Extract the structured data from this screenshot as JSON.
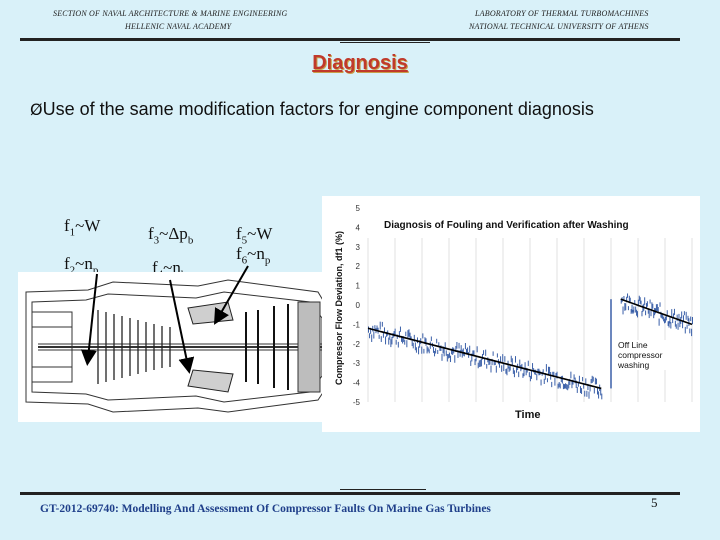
{
  "header": {
    "left_line1": "SECTION OF NAVAL ARCHITECTURE & MARINE ENGINEERING",
    "left_line2": "HELLENIC NAVAL ACADEMY",
    "right_line1": "LABORATORY OF THERMAL TURBOMACHINES",
    "right_line2": "NATIONAL TECHNICAL UNIVERSITY OF ATHENS"
  },
  "slide": {
    "title": "Diagnosis",
    "bullet_arrow": "Ø",
    "bullet_text": "Use of the same modification factors for engine component diagnosis"
  },
  "factors": [
    {
      "f": "f",
      "sub": "1",
      "rel": "~W"
    },
    {
      "f": "f",
      "sub": "2",
      "rel": "~n",
      "rsub": "p"
    },
    {
      "f": "f",
      "sub": "3",
      "rel": "~Δp",
      "rsub": "b"
    },
    {
      "f": "f",
      "sub": "4",
      "rel": "~n",
      "rsub": "b"
    },
    {
      "f": "f",
      "sub": "5",
      "rel": "~W"
    },
    {
      "f": "f",
      "sub": "6",
      "rel": "~n",
      "rsub": "p"
    }
  ],
  "chart_data": {
    "type": "scatter",
    "title": "Diagnosis of Fouling and Verification after Washing",
    "xlabel": "Time",
    "ylabel": "Compressor Flow Deviation, df1 (%)",
    "ytick_labels": [
      "5",
      "4",
      "3",
      "2",
      "1",
      "0",
      "-1",
      "-2",
      "-3",
      "-4",
      "-5"
    ],
    "ylim": [
      -5,
      5
    ],
    "annotation": "Off Line compressor washing",
    "segment_before_wash": {
      "x": [
        0,
        0.72
      ],
      "y_start": -1.2,
      "y_end": -4.3
    },
    "segment_after_wash": {
      "x": [
        0.78,
        1.0
      ],
      "y_start": 0.3,
      "y_end": -1.0
    },
    "grid": "vertical",
    "series_color": "#3a5fa8",
    "trend_color": "#000000"
  },
  "footer": {
    "text": "GT-2012-69740: Modelling And Assessment Of Compressor Faults On Marine Gas Turbines",
    "page": "5"
  }
}
